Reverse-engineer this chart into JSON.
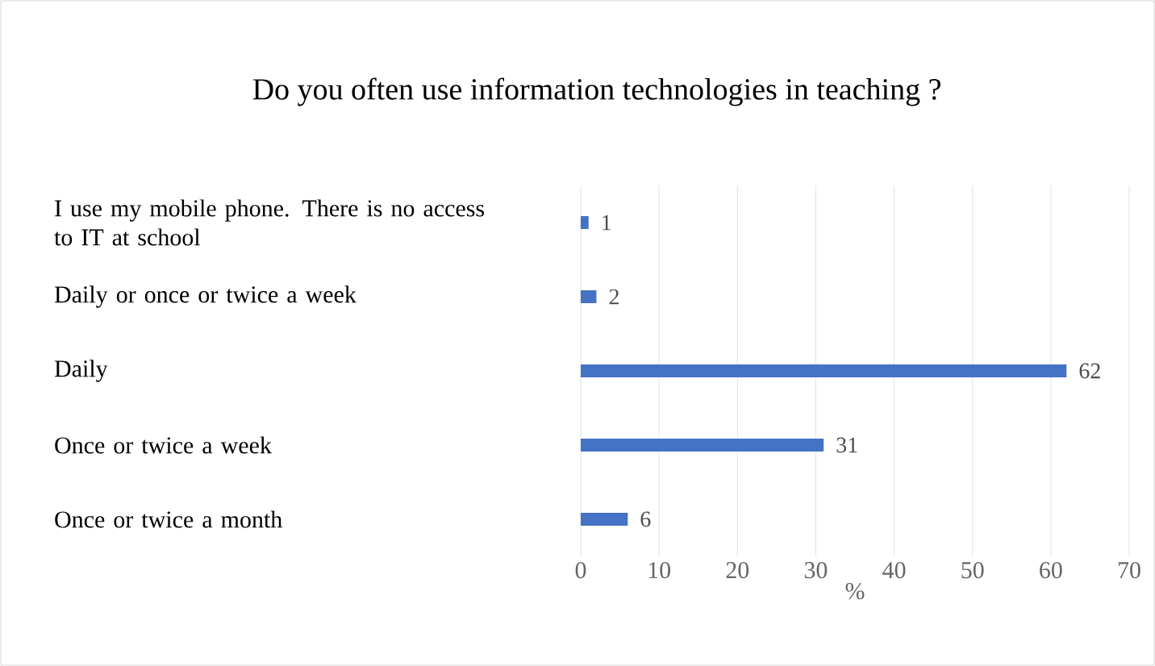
{
  "chart_data": {
    "type": "bar",
    "orientation": "horizontal",
    "title": "Do you often use information technologies in teaching ?",
    "categories": [
      "I use my mobile phone. There is no access to IT at school",
      "Daily or once or twice a week",
      "Daily",
      "Once or twice a week",
      "Once or twice a month"
    ],
    "values": [
      1,
      2,
      62,
      31,
      6
    ],
    "color": "#4472c4",
    "xlim": [
      0,
      70
    ],
    "xticks": [
      0,
      10,
      20,
      30,
      40,
      50,
      60,
      70
    ],
    "xlabel": "%",
    "grid": "x",
    "data_labels": true
  }
}
